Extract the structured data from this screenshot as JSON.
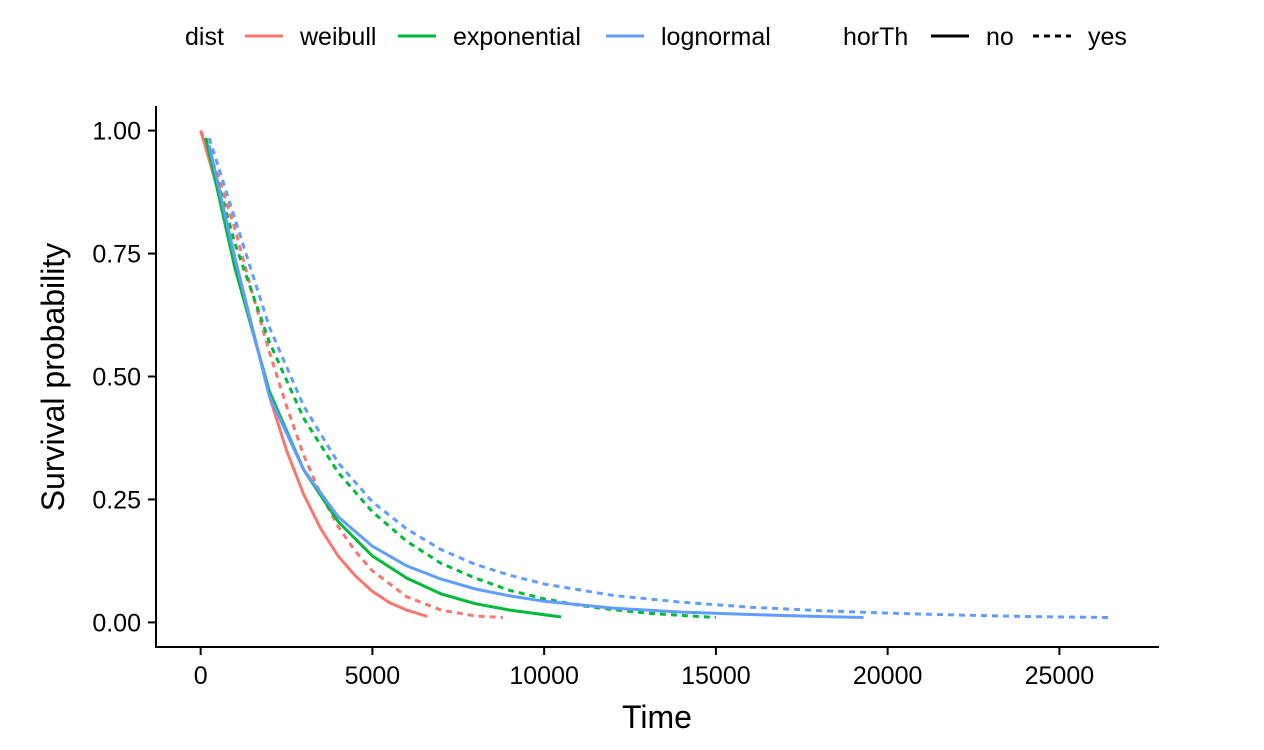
{
  "chart_data": {
    "type": "line",
    "xlabel": "Time",
    "ylabel": "Survival probability",
    "xlim": [
      -1300,
      27900
    ],
    "ylim": [
      -0.05,
      1.05
    ],
    "x_ticks": [
      0,
      5000,
      10000,
      15000,
      20000,
      25000
    ],
    "x_tick_labels": [
      "0",
      "5000",
      "10000",
      "15000",
      "20000",
      "25000"
    ],
    "y_ticks": [
      0,
      0.25,
      0.5,
      0.75,
      1
    ],
    "y_tick_labels": [
      "0.00",
      "0.25",
      "0.50",
      "0.75",
      "1.00"
    ],
    "grid": false,
    "legend": {
      "position": "top",
      "color_title": "dist",
      "color_entries": [
        {
          "label": "weibull",
          "color": "#F8766D"
        },
        {
          "label": "exponential",
          "color": "#00BA38"
        },
        {
          "label": "lognormal",
          "color": "#619CFF"
        }
      ],
      "linetype_title": "horTh",
      "linetype_entries": [
        {
          "label": "no",
          "dash": "solid"
        },
        {
          "label": "yes",
          "dash": "dashed"
        }
      ]
    },
    "series": [
      {
        "dist": "weibull",
        "horTh": "no",
        "color": "#F8766D",
        "dash": "solid",
        "points": [
          [
            0,
            1.0
          ],
          [
            500,
            0.88
          ],
          [
            1000,
            0.74
          ],
          [
            1500,
            0.6
          ],
          [
            2000,
            0.46
          ],
          [
            2500,
            0.35
          ],
          [
            3000,
            0.26
          ],
          [
            3500,
            0.19
          ],
          [
            4000,
            0.135
          ],
          [
            4500,
            0.095
          ],
          [
            5000,
            0.063
          ],
          [
            5500,
            0.04
          ],
          [
            6000,
            0.025
          ],
          [
            6600,
            0.012
          ]
        ]
      },
      {
        "dist": "weibull",
        "horTh": "yes",
        "color": "#F8766D",
        "dash": "dashed",
        "points": [
          [
            0,
            1.0
          ],
          [
            500,
            0.91
          ],
          [
            1000,
            0.8
          ],
          [
            1500,
            0.67
          ],
          [
            2000,
            0.55
          ],
          [
            2500,
            0.44
          ],
          [
            3000,
            0.34
          ],
          [
            3500,
            0.26
          ],
          [
            4000,
            0.195
          ],
          [
            4500,
            0.145
          ],
          [
            5000,
            0.105
          ],
          [
            6000,
            0.052
          ],
          [
            7000,
            0.025
          ],
          [
            8000,
            0.013
          ],
          [
            8800,
            0.01
          ]
        ]
      },
      {
        "dist": "exponential",
        "horTh": "no",
        "color": "#00BA38",
        "dash": "solid",
        "points": [
          [
            150,
            0.985
          ],
          [
            1000,
            0.72
          ],
          [
            2000,
            0.47
          ],
          [
            3000,
            0.31
          ],
          [
            4000,
            0.205
          ],
          [
            5000,
            0.135
          ],
          [
            6000,
            0.09
          ],
          [
            7000,
            0.058
          ],
          [
            8000,
            0.038
          ],
          [
            9000,
            0.025
          ],
          [
            10500,
            0.011
          ]
        ]
      },
      {
        "dist": "exponential",
        "horTh": "yes",
        "color": "#00BA38",
        "dash": "dashed",
        "points": [
          [
            150,
            0.985
          ],
          [
            1000,
            0.77
          ],
          [
            2000,
            0.57
          ],
          [
            3000,
            0.415
          ],
          [
            4000,
            0.305
          ],
          [
            5000,
            0.225
          ],
          [
            6000,
            0.165
          ],
          [
            7000,
            0.12
          ],
          [
            8000,
            0.09
          ],
          [
            9000,
            0.065
          ],
          [
            10000,
            0.048
          ],
          [
            11000,
            0.035
          ],
          [
            12000,
            0.026
          ],
          [
            13000,
            0.019
          ],
          [
            14000,
            0.014
          ],
          [
            15000,
            0.01
          ]
        ]
      },
      {
        "dist": "lognormal",
        "horTh": "no",
        "color": "#619CFF",
        "dash": "solid",
        "points": [
          [
            250,
            0.97
          ],
          [
            1000,
            0.74
          ],
          [
            2000,
            0.46
          ],
          [
            3000,
            0.31
          ],
          [
            4000,
            0.215
          ],
          [
            5000,
            0.155
          ],
          [
            6000,
            0.115
          ],
          [
            7000,
            0.088
          ],
          [
            8000,
            0.068
          ],
          [
            9000,
            0.054
          ],
          [
            10000,
            0.043
          ],
          [
            12000,
            0.029
          ],
          [
            14000,
            0.021
          ],
          [
            16000,
            0.016
          ],
          [
            18000,
            0.012
          ],
          [
            19300,
            0.01
          ]
        ]
      },
      {
        "dist": "lognormal",
        "horTh": "yes",
        "color": "#619CFF",
        "dash": "dashed",
        "points": [
          [
            250,
            0.985
          ],
          [
            1000,
            0.82
          ],
          [
            2000,
            0.6
          ],
          [
            3000,
            0.44
          ],
          [
            4000,
            0.325
          ],
          [
            5000,
            0.245
          ],
          [
            6000,
            0.19
          ],
          [
            7000,
            0.148
          ],
          [
            8000,
            0.118
          ],
          [
            9000,
            0.096
          ],
          [
            10000,
            0.078
          ],
          [
            12000,
            0.055
          ],
          [
            14000,
            0.041
          ],
          [
            16000,
            0.031
          ],
          [
            18000,
            0.024
          ],
          [
            20000,
            0.019
          ],
          [
            22000,
            0.015
          ],
          [
            24000,
            0.012
          ],
          [
            26500,
            0.01
          ]
        ]
      }
    ]
  }
}
